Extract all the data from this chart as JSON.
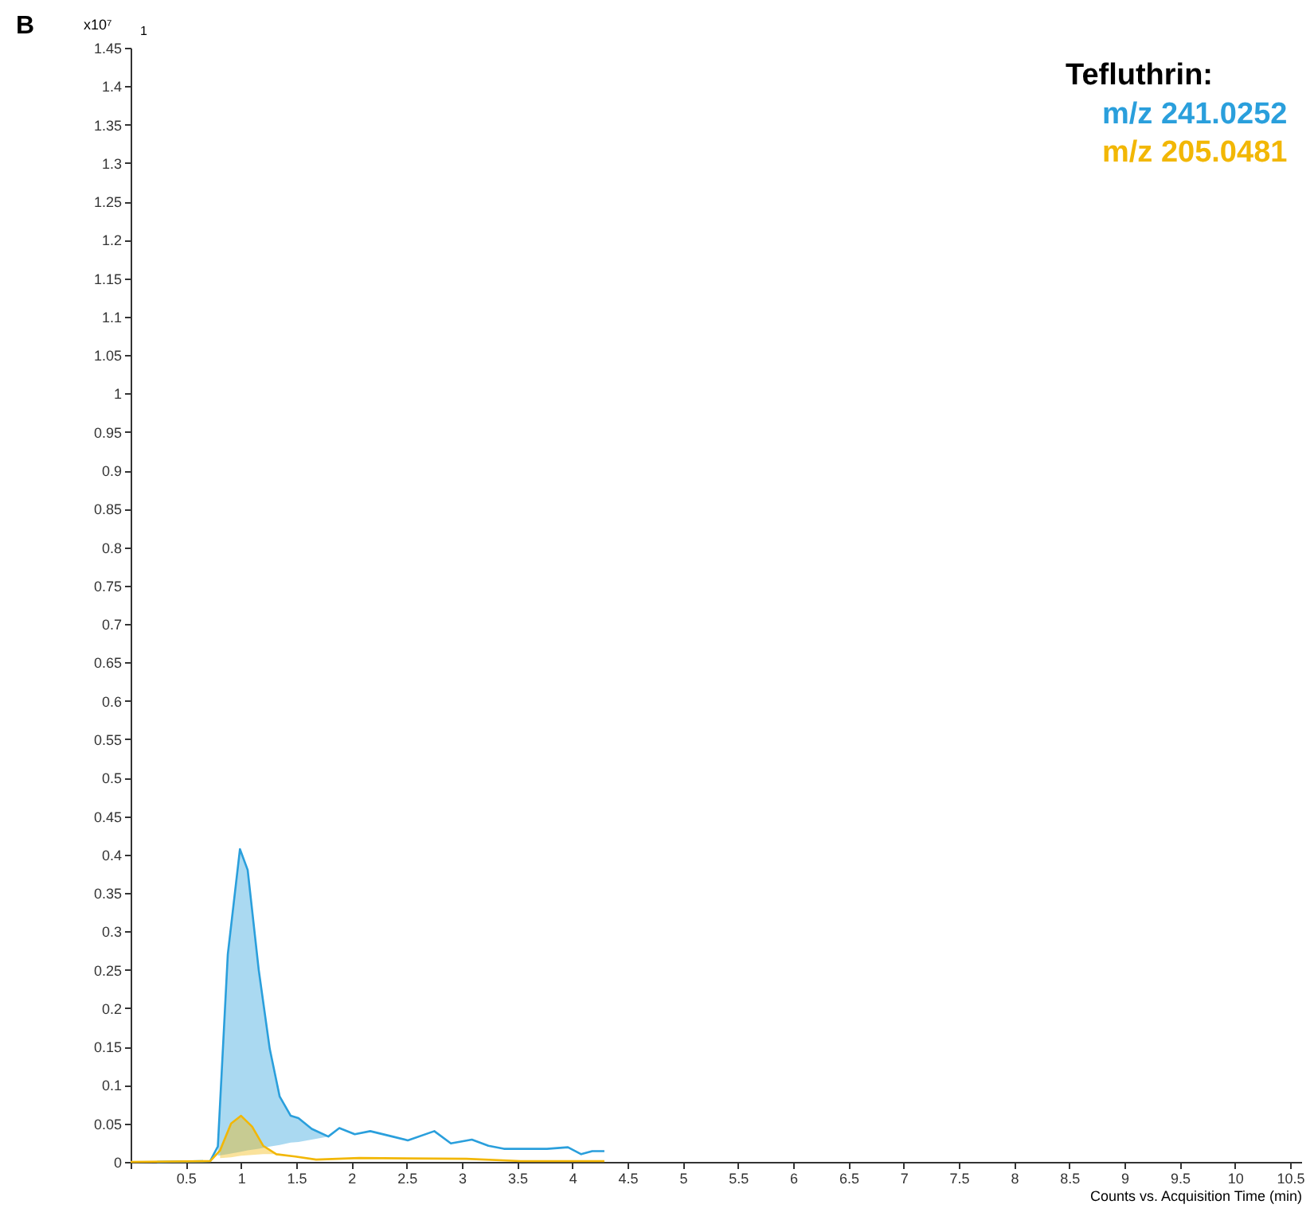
{
  "chart_data": {
    "type": "line",
    "legend_title": "Tefluthrin:",
    "xlabel": "Counts vs. Acquisition Time (min)",
    "ylabel": "x10⁷",
    "annotations": [
      "B",
      "1"
    ],
    "legend": "top right",
    "line_style": "solid",
    "xlim": [
      0,
      10.6
    ],
    "xticks": [
      {
        "value": 0,
        "label": null
      },
      0.5,
      1,
      1.5,
      2,
      2.5,
      3,
      3.5,
      4,
      4.5,
      5,
      5.5,
      6,
      6.5,
      7,
      7.5,
      8,
      8.5,
      9,
      9.5,
      10,
      10.5
    ],
    "ylim": [
      0,
      1.45
    ],
    "yticks": [
      0,
      0.05,
      0.1,
      0.15,
      0.2,
      0.25,
      0.3,
      0.35,
      0.4,
      0.45,
      0.5,
      0.55,
      0.6,
      0.65,
      0.7,
      0.75,
      0.8,
      0.85,
      0.9,
      0.95,
      1,
      1.05,
      1.1,
      1.15,
      1.2,
      1.25,
      1.3,
      1.35,
      1.4,
      1.45
    ],
    "series": [
      {
        "name": "m/z 241.0252",
        "color": "#2a9fdc",
        "x": [
          0.24,
          0.72,
          0.79,
          0.88,
          0.99,
          1.06,
          1.16,
          1.26,
          1.35,
          1.45,
          1.52,
          1.64,
          1.79,
          1.89,
          2.03,
          2.17,
          2.37,
          2.51,
          2.75,
          2.9,
          3.09,
          3.24,
          3.38,
          3.53,
          3.77,
          3.96,
          4.08,
          4.18,
          4.29
        ],
        "values": [
          0,
          0.001,
          0.02,
          0.27,
          0.407,
          0.38,
          0.25,
          0.147,
          0.085,
          0.06,
          0.057,
          0.043,
          0.033,
          0.044,
          0.036,
          0.04,
          0.033,
          0.028,
          0.04,
          0.024,
          0.029,
          0.021,
          0.017,
          0.017,
          0.017,
          0.019,
          0.01,
          0.014,
          0.014
        ],
        "lower": [
          null,
          null,
          0.008,
          0.01,
          0.013,
          0.015,
          0.017,
          0.02,
          0.022,
          0.025,
          0.026,
          0.029,
          0.033,
          null,
          null,
          null,
          null,
          null,
          null,
          null,
          null,
          null,
          null,
          null,
          null,
          null,
          null,
          null,
          null
        ],
        "upper": [
          null,
          null,
          0.02,
          0.27,
          0.407,
          0.38,
          0.25,
          0.147,
          0.085,
          0.06,
          0.057,
          0.043,
          0.033,
          null,
          null,
          null,
          null,
          null,
          null,
          null,
          null,
          null,
          null,
          null,
          null,
          null,
          null,
          null,
          null
        ]
      },
      {
        "name": "m/z 205.0481",
        "color": "#f2b705",
        "x": [
          0,
          0.72,
          0.81,
          0.91,
          1.0,
          1.1,
          1.2,
          1.32,
          1.49,
          1.68,
          2.07,
          3.04,
          3.53,
          4.29
        ],
        "values": [
          0,
          0.001,
          0.015,
          0.05,
          0.06,
          0.046,
          0.021,
          0.01,
          0.007,
          0.003,
          0.005,
          0.004,
          0.001,
          0.001
        ],
        "lower": [
          null,
          null,
          0.005,
          0.006,
          0.008,
          0.009,
          0.01,
          0.01,
          null,
          null,
          null,
          null,
          null,
          null
        ],
        "upper": [
          null,
          null,
          0.015,
          0.05,
          0.06,
          0.046,
          0.021,
          0.01,
          null,
          null,
          null,
          null,
          null,
          null
        ]
      }
    ]
  }
}
